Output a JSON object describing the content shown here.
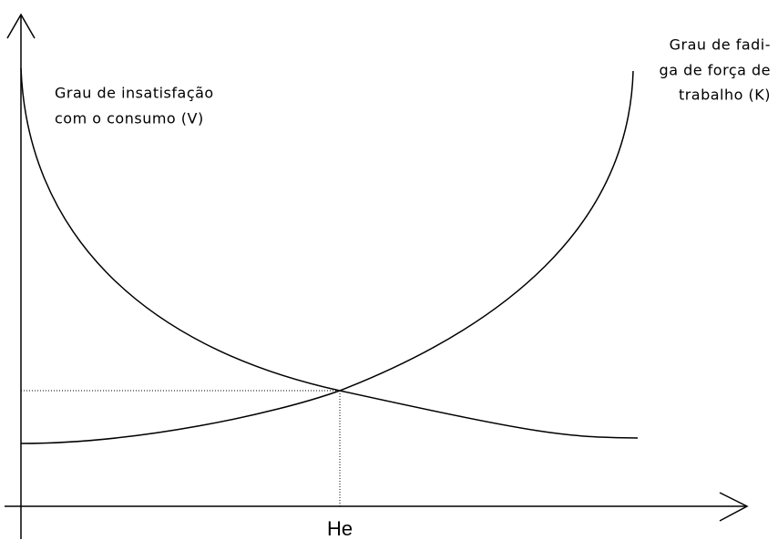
{
  "curves": {
    "v_curve": {
      "label_lines": [
        "Grau de insatisfação",
        "com o consumo (V)"
      ]
    },
    "k_curve": {
      "label_lines": [
        "Grau de fadi-",
        "ga de força de",
        "trabalho (K)"
      ]
    }
  },
  "equilibrium": {
    "label": "He"
  }
}
